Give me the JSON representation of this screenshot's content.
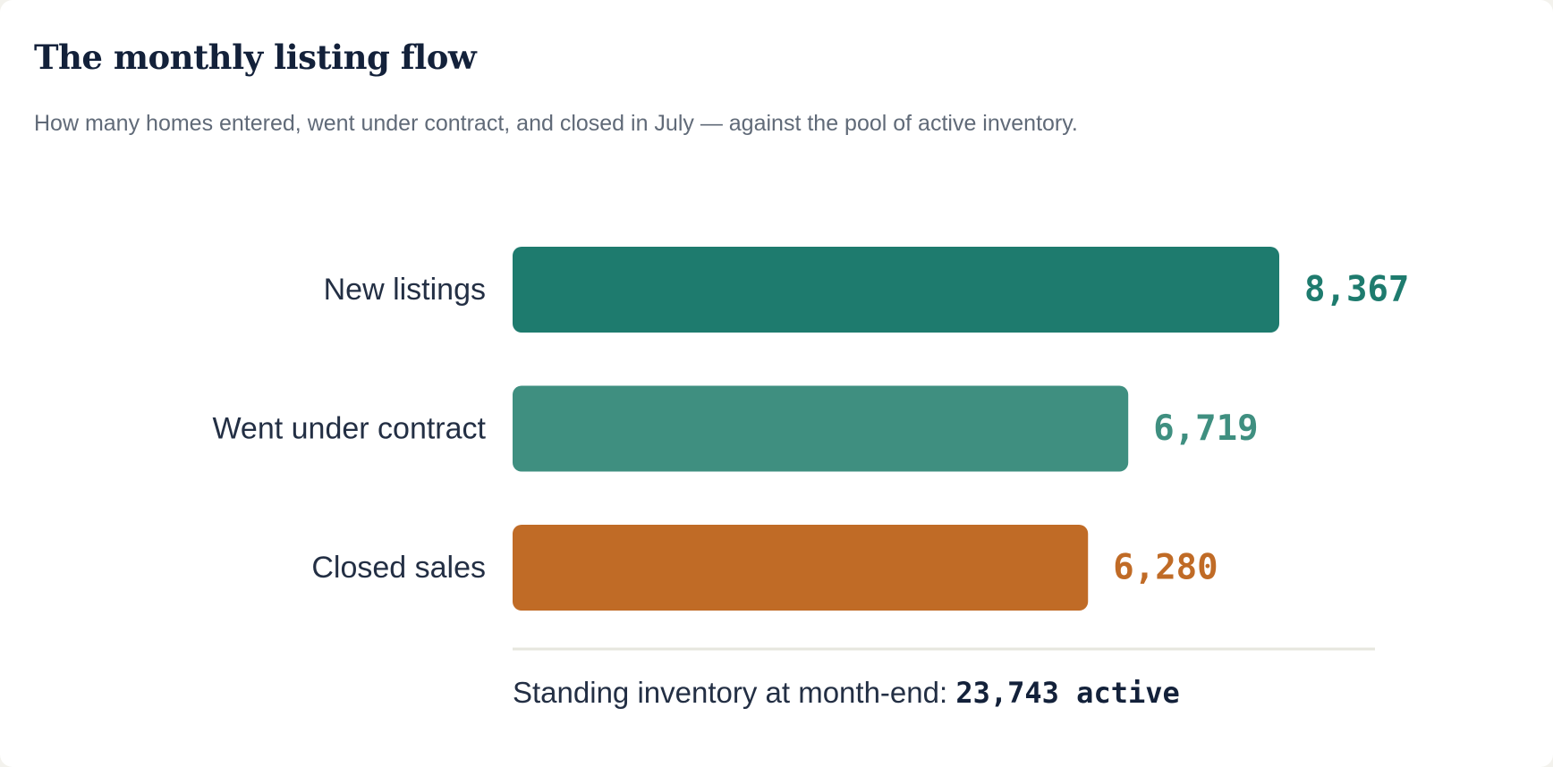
{
  "chart_data": {
    "type": "bar",
    "orientation": "horizontal",
    "title": "The monthly listing flow",
    "subtitle": "How many homes entered, went under contract, and closed in July — against the pool of active inventory.",
    "categories": [
      "New listings",
      "Went under contract",
      "Closed sales"
    ],
    "values": [
      8367,
      6719,
      6280
    ],
    "value_labels": [
      "8,367",
      "6,719",
      "6,280"
    ],
    "colors": [
      "#1e7b6e",
      "#3f8f80",
      "#c06b26"
    ],
    "xlim": [
      0,
      9000
    ],
    "grid": false,
    "legend": "none",
    "footer": {
      "label": "Standing inventory at month-end: ",
      "value": "23,743 active"
    }
  }
}
